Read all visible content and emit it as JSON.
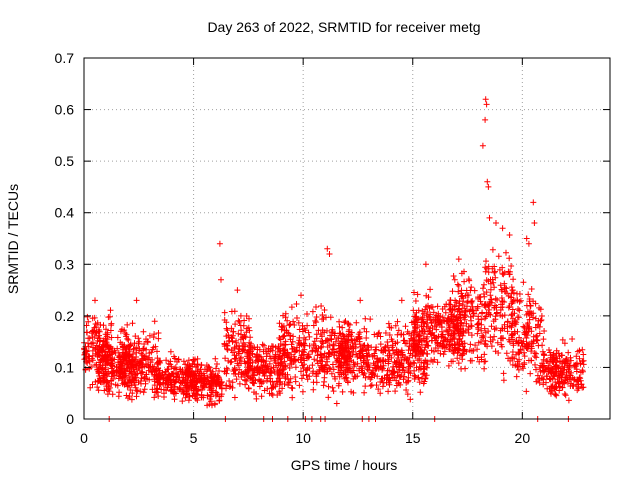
{
  "chart_data": {
    "type": "scatter",
    "title": "Day 263 of 2022, SRMTID for receiver metg",
    "xlabel": "GPS time / hours",
    "ylabel": "SRMTID / TECUs",
    "xlim": [
      0,
      24
    ],
    "ylim": [
      0,
      0.7
    ],
    "xticks": [
      0,
      5,
      10,
      15,
      20
    ],
    "yticks": [
      0,
      0.1,
      0.2,
      0.3,
      0.4,
      0.5,
      0.6,
      0.7
    ],
    "grid": true,
    "marker": "+",
    "color": "#ff0000",
    "segments": [
      {
        "start": 0.0,
        "end": 1.3,
        "base": 0.14,
        "amp": 0.05
      },
      {
        "start": 0.6,
        "end": 2.4,
        "base": 0.1,
        "amp": 0.04
      },
      {
        "start": 1.6,
        "end": 3.4,
        "base": 0.11,
        "amp": 0.05
      },
      {
        "start": 3.2,
        "end": 5.2,
        "base": 0.08,
        "amp": 0.03
      },
      {
        "start": 4.6,
        "end": 6.3,
        "base": 0.07,
        "amp": 0.03
      },
      {
        "start": 6.4,
        "end": 7.6,
        "base": 0.13,
        "amp": 0.06
      },
      {
        "start": 7.4,
        "end": 9.2,
        "base": 0.1,
        "amp": 0.04
      },
      {
        "start": 8.9,
        "end": 10.3,
        "base": 0.13,
        "amp": 0.06
      },
      {
        "start": 10.4,
        "end": 12.1,
        "base": 0.13,
        "amp": 0.06
      },
      {
        "start": 11.6,
        "end": 13.6,
        "base": 0.12,
        "amp": 0.05
      },
      {
        "start": 13.6,
        "end": 15.7,
        "base": 0.12,
        "amp": 0.05
      },
      {
        "start": 15.0,
        "end": 17.3,
        "base": 0.17,
        "amp": 0.05
      },
      {
        "start": 16.7,
        "end": 18.3,
        "base": 0.19,
        "amp": 0.07
      },
      {
        "start": 18.3,
        "end": 19.6,
        "base": 0.22,
        "amp": 0.09
      },
      {
        "start": 19.5,
        "end": 21.0,
        "base": 0.16,
        "amp": 0.07
      },
      {
        "start": 20.9,
        "end": 22.8,
        "base": 0.09,
        "amp": 0.04
      }
    ],
    "spikes": [
      {
        "x": 6.2,
        "y": 0.34
      },
      {
        "x": 6.25,
        "y": 0.27
      },
      {
        "x": 7.0,
        "y": 0.25
      },
      {
        "x": 11.1,
        "y": 0.33
      },
      {
        "x": 11.2,
        "y": 0.32
      },
      {
        "x": 15.6,
        "y": 0.3
      },
      {
        "x": 17.1,
        "y": 0.31
      },
      {
        "x": 18.2,
        "y": 0.53
      },
      {
        "x": 18.3,
        "y": 0.58
      },
      {
        "x": 18.33,
        "y": 0.62
      },
      {
        "x": 18.37,
        "y": 0.61
      },
      {
        "x": 18.4,
        "y": 0.46
      },
      {
        "x": 18.45,
        "y": 0.45
      },
      {
        "x": 18.5,
        "y": 0.39
      },
      {
        "x": 18.8,
        "y": 0.38
      },
      {
        "x": 19.1,
        "y": 0.37
      },
      {
        "x": 20.2,
        "y": 0.35
      },
      {
        "x": 20.5,
        "y": 0.42
      },
      {
        "x": 20.55,
        "y": 0.38
      },
      {
        "x": 20.3,
        "y": 0.34
      },
      {
        "x": 2.4,
        "y": 0.23
      },
      {
        "x": 0.5,
        "y": 0.23
      },
      {
        "x": 9.9,
        "y": 0.24
      },
      {
        "x": 12.6,
        "y": 0.23
      },
      {
        "x": 14.5,
        "y": 0.23
      }
    ],
    "baseline_x": [
      1.15,
      6.45,
      8.2,
      8.6,
      9.3,
      10.1,
      10.4,
      10.8,
      11.0,
      12.7,
      13.0,
      13.3,
      16.0,
      20.7,
      22.1
    ]
  }
}
